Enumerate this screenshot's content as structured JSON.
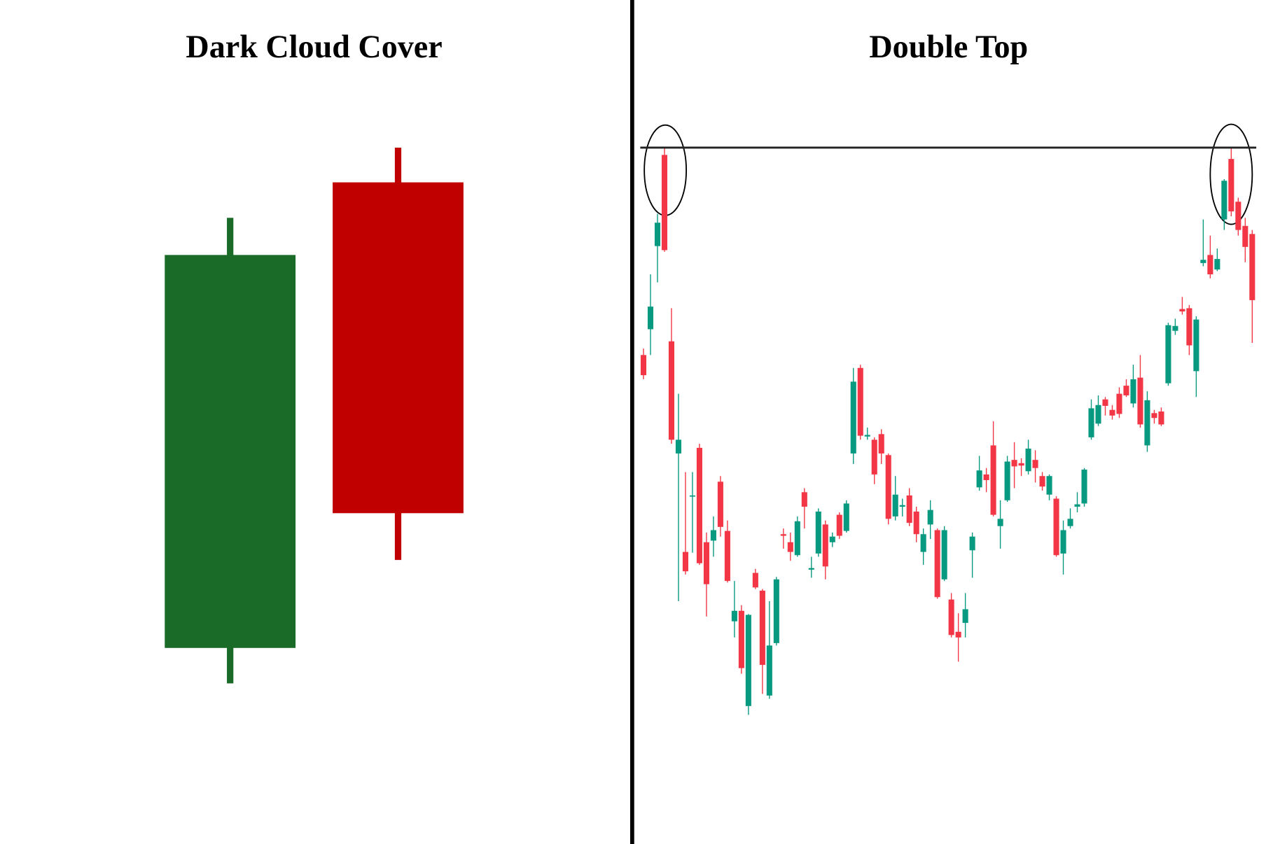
{
  "chart_data": [
    {
      "type": "candlestick",
      "title": "Dark Cloud Cover",
      "up_color": "#1b6b28",
      "down_color": "#c00000",
      "ylim": [
        0,
        1046
      ],
      "open": [
        243,
        820
      ],
      "close": [
        730,
        410
      ],
      "high": [
        776,
        863
      ],
      "low": [
        199,
        352
      ]
    },
    {
      "type": "candlestick",
      "title": "Double Top",
      "up_color": "#089981",
      "down_color": "#f23645",
      "ylim": [
        0,
        1046
      ],
      "resistance": 863,
      "open": [
        606,
        638,
        741,
        854,
        623,
        484,
        362,
        431,
        491,
        374,
        376,
        449,
        388,
        276,
        289,
        171,
        336,
        314,
        184,
        249,
        384,
        374,
        358,
        436,
        340,
        360,
        396,
        374,
        408,
        388,
        484,
        590,
        505,
        501,
        508,
        482,
        406,
        418,
        432,
        412,
        362,
        396,
        389,
        328,
        303,
        263,
        274,
        364,
        442,
        458,
        494,
        394,
        426,
        476,
        472,
        462,
        476,
        456,
        433,
        428,
        360,
        394,
        418,
        422,
        504,
        521,
        551,
        538,
        558,
        568,
        546,
        578,
        494,
        534,
        536,
        571,
        636,
        663,
        664,
        586,
        720,
        730,
        712,
        774,
        849,
        796,
        766,
        756
      ],
      "close": [
        581,
        666,
        770,
        736,
        501,
        501,
        338,
        432,
        348,
        322,
        389,
        393,
        326,
        289,
        218,
        284,
        318,
        222,
        246,
        328,
        382,
        362,
        400,
        418,
        342,
        412,
        344,
        381,
        382,
        422,
        573,
        506,
        507,
        458,
        484,
        403,
        433,
        420,
        398,
        384,
        384,
        414,
        306,
        389,
        259,
        256,
        291,
        381,
        463,
        451,
        408,
        403,
        474,
        468,
        469,
        490,
        466,
        443,
        456,
        358,
        389,
        403,
        421,
        464,
        540,
        544,
        543,
        531,
        533,
        556,
        576,
        520,
        550,
        528,
        520,
        643,
        642,
        660,
        618,
        650,
        724,
        706,
        725,
        822,
        784,
        761,
        740,
        674
      ],
      "high": [
        614,
        706,
        781,
        863,
        664,
        558,
        461,
        461,
        496,
        386,
        406,
        456,
        401,
        326,
        296,
        285,
        341,
        316,
        301,
        331,
        391,
        386,
        406,
        441,
        356,
        416,
        401,
        386,
        411,
        426,
        590,
        594,
        516,
        504,
        514,
        484,
        456,
        428,
        441,
        418,
        391,
        426,
        391,
        394,
        311,
        286,
        311,
        386,
        481,
        466,
        524,
        426,
        481,
        498,
        478,
        501,
        488,
        461,
        458,
        431,
        401,
        416,
        436,
        466,
        551,
        556,
        554,
        544,
        566,
        576,
        594,
        606,
        561,
        538,
        541,
        646,
        651,
        678,
        668,
        654,
        774,
        754,
        738,
        824,
        863,
        801,
        776,
        761
      ],
      "low": [
        576,
        606,
        696,
        734,
        496,
        301,
        334,
        361,
        346,
        282,
        356,
        381,
        324,
        256,
        211,
        160,
        316,
        186,
        180,
        246,
        366,
        351,
        356,
        391,
        330,
        356,
        328,
        368,
        378,
        386,
        471,
        501,
        501,
        446,
        471,
        396,
        401,
        406,
        394,
        374,
        346,
        378,
        304,
        326,
        256,
        226,
        256,
        330,
        438,
        436,
        406,
        366,
        424,
        441,
        456,
        458,
        448,
        438,
        426,
        356,
        334,
        391,
        411,
        418,
        501,
        518,
        531,
        526,
        528,
        554,
        541,
        516,
        486,
        521,
        518,
        568,
        631,
        656,
        606,
        554,
        716,
        701,
        710,
        761,
        778,
        754,
        721,
        621
      ]
    }
  ]
}
